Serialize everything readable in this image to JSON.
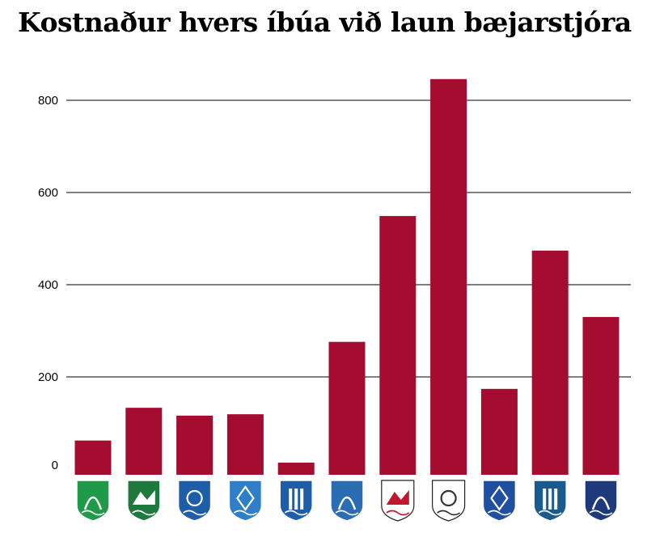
{
  "chart_data": {
    "type": "bar",
    "title": "Kostnaður hvers íbúa við laun bæjarstjóra",
    "xlabel": "",
    "ylabel": "",
    "ylim": [
      0,
      870
    ],
    "yticks": [
      0,
      200,
      400,
      600,
      800
    ],
    "grid": true,
    "categories": [
      "crest-1",
      "crest-2",
      "crest-3",
      "crest-4",
      "crest-5",
      "crest-6",
      "crest-7",
      "crest-8",
      "crest-9",
      "crest-10",
      "crest-11"
    ],
    "values": [
      62,
      133,
      116,
      119,
      14,
      276,
      549,
      846,
      174,
      474,
      330
    ],
    "bar_color": "#a50d30",
    "crests": [
      {
        "icon": "green-arch-crest-icon",
        "bg": "#1e9a48"
      },
      {
        "icon": "green-mountain-crest-icon",
        "bg": "#1d7a3c"
      },
      {
        "icon": "blue-swan-crest-icon",
        "bg": "#1e5ea8"
      },
      {
        "icon": "blue-eagle-crest-icon",
        "bg": "#2f7fc8"
      },
      {
        "icon": "blue-columns-crest-icon",
        "bg": "#1e5ea8"
      },
      {
        "icon": "blue-town-crest-icon",
        "bg": "#2a6db3"
      },
      {
        "icon": "red-sun-ship-crest-icon",
        "bg": "#ffffff"
      },
      {
        "icon": "white-anchor-crest-icon",
        "bg": "#ffffff"
      },
      {
        "icon": "blue-lighthouse-crest-icon",
        "bg": "#1e4fa0"
      },
      {
        "icon": "blue-knot-crest-icon",
        "bg": "#1a5b8f"
      },
      {
        "icon": "navy-mountain-crest-icon",
        "bg": "#1e3a7a"
      }
    ]
  }
}
